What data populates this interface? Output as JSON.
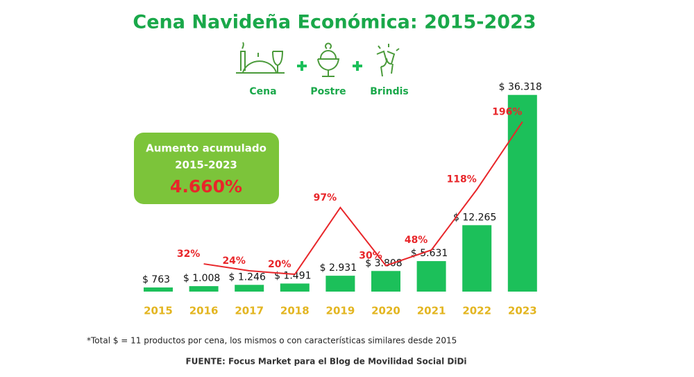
{
  "chart_data": {
    "type": "bar",
    "title": "Cena Navideña Económica: 2015-2023",
    "icons": [
      "Cena",
      "Postre",
      "Brindis"
    ],
    "callout": {
      "label": "Aumento acumulado",
      "period": "2015-2023",
      "value": "4.660%"
    },
    "categories": [
      "2015",
      "2016",
      "2017",
      "2018",
      "2019",
      "2020",
      "2021",
      "2022",
      "2023"
    ],
    "series": [
      {
        "type": "bar",
        "color": "#1cc05a",
        "values": [
          763,
          1008,
          1246,
          1491,
          2931,
          3808,
          5631,
          12265,
          36318
        ],
        "value_labels": [
          "$ 763",
          "$ 1.008",
          "$ 1.246",
          "$ 1.491",
          "$ 2.931",
          "$ 3.808",
          "$ 5.631",
          "$ 12.265",
          "$ 36.318"
        ]
      },
      {
        "type": "line",
        "axis": "y2",
        "color": "#e8262a",
        "values": [
          null,
          32,
          24,
          20,
          97,
          30,
          48,
          118,
          196
        ],
        "value_labels": [
          null,
          "32%",
          "24%",
          "20%",
          "97%",
          "30%",
          "48%",
          "118%",
          "196%"
        ]
      }
    ],
    "ylim": [
      0,
      40000
    ],
    "y2lim": [
      0,
      250
    ],
    "note": "*Total $ = 11 productos por cena, los mismos o con características similares desde 2015",
    "source": "FUENTE: Focus Market para el Blog de Movilidad Social DiDi"
  }
}
